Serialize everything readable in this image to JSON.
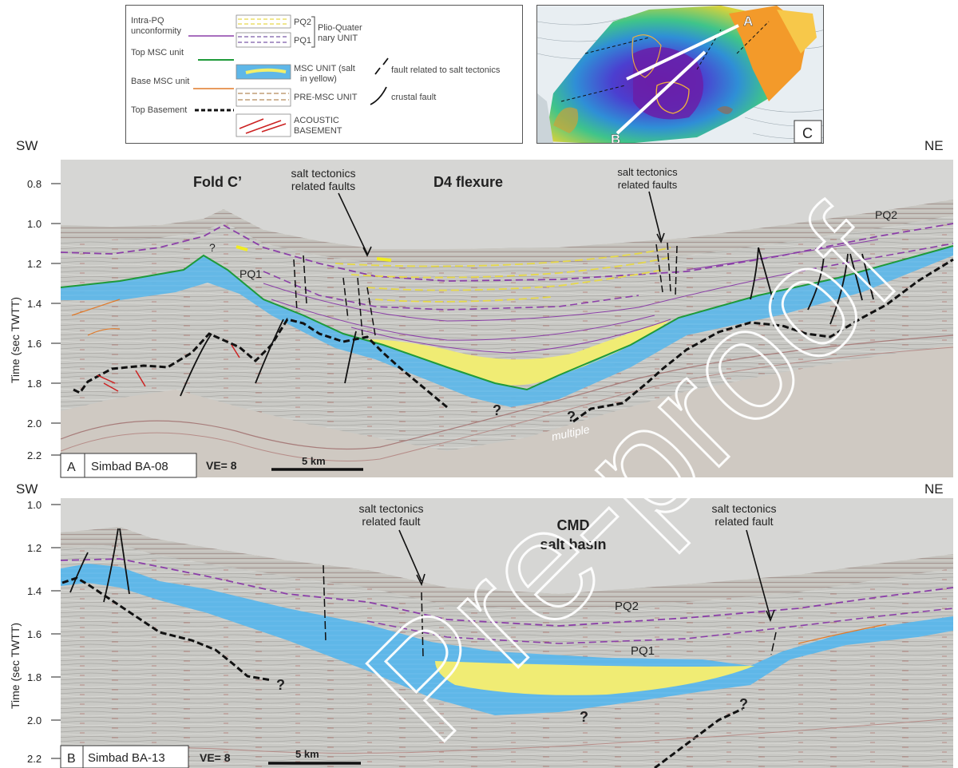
{
  "legend": {
    "left_labels": [
      {
        "text": "Intra-PQ",
        "color": "#444"
      },
      {
        "text": "unconformity",
        "color": "#444"
      },
      {
        "text": "Top MSC unit",
        "color": "#444"
      },
      {
        "text": "Base MSC unit",
        "color": "#444"
      },
      {
        "text": "Top Basement",
        "color": "#444"
      }
    ],
    "unit_labels": {
      "pq2": "PQ2",
      "pq1": "PQ1",
      "plio_1": "Plio-Quater",
      "plio_2": "nary UNIT",
      "msc_1": "MSC UNIT (salt",
      "msc_2": "in yellow)",
      "premsc": "PRE-MSC UNIT",
      "acoustic_1": "ACOUSTIC",
      "acoustic_2": "BASEMENT"
    },
    "fault_labels": {
      "salt": "fault related to salt tectonics",
      "crustal": "crustal fault"
    },
    "colors": {
      "intra_pq": "#8b3fa8",
      "top_msc": "#1f9a3a",
      "base_msc": "#e07a2a",
      "msc_fill": "#5fb7e8",
      "salt": "#f2ef6a",
      "pq2_line": "#e6d84a",
      "pq1_line": "#7b5aa6",
      "premsc_line": "#b58a5a",
      "basement_line": "#cc2222"
    }
  },
  "map": {
    "panel_letter": "C",
    "line_a": "A",
    "line_b": "B"
  },
  "section_a": {
    "sw": "SW",
    "ne": "NE",
    "axis_label": "Time (sec TWTT)",
    "ticks": [
      "0.8",
      "1.0",
      "1.2",
      "1.4",
      "1.6",
      "1.8",
      "2.0",
      "2.2"
    ],
    "annotations": {
      "fold": "Fold C’",
      "salt_faults_1a": "salt tectonics",
      "salt_faults_1b": "related faults",
      "flexure": "D4 flexure",
      "salt_faults_2a": "salt tectonics",
      "salt_faults_2b": "related faults",
      "pq2": "PQ2",
      "pq1": "PQ1",
      "q1": "?",
      "q2": "?",
      "q3": "?",
      "multiple": "multiple"
    },
    "panel_letter": "A",
    "line_name": "Simbad BA-08",
    "ve": "VE= 8",
    "scale": "5 km"
  },
  "section_b": {
    "sw": "SW",
    "ne": "NE",
    "axis_label": "Time (sec TWTT)",
    "ticks": [
      "1.0",
      "1.2",
      "1.4",
      "1.6",
      "1.8",
      "2.0",
      "2.2"
    ],
    "annotations": {
      "salt_fault_1a": "salt tectonics",
      "salt_fault_1b": "related fault",
      "basin_1": "CMD",
      "basin_2": "salt basin",
      "salt_fault_2a": "salt tectonics",
      "salt_fault_2b": "related fault",
      "pq2": "PQ2",
      "pq1": "PQ1",
      "q1": "?",
      "q2": "?",
      "q3": "?"
    },
    "panel_letter": "B",
    "line_name": "Simbad BA-13",
    "ve": "VE= 8",
    "scale": "5 km"
  },
  "watermark": "Pre-proof"
}
